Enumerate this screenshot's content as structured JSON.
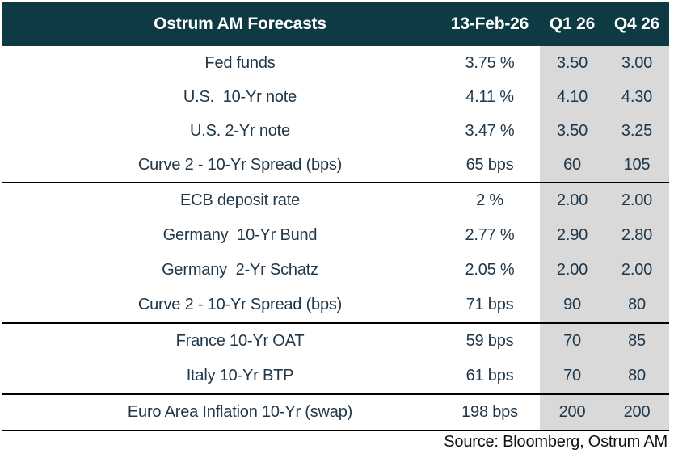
{
  "table": {
    "title": "Ostrum AM Forecasts",
    "columns": [
      "13-Feb-26",
      "Q1 26",
      "Q4 26"
    ],
    "sections": [
      {
        "rows": [
          {
            "label": "Fed funds",
            "current": "3.75 %",
            "q1": "3.50",
            "q4": "3.00"
          },
          {
            "label": "U.S.  10-Yr note",
            "current": "4.11 %",
            "q1": "4.10",
            "q4": "4.30"
          },
          {
            "label": "U.S. 2-Yr note",
            "current": "3.47 %",
            "q1": "3.50",
            "q4": "3.25"
          },
          {
            "label": "Curve 2 - 10-Yr Spread (bps)",
            "current": "65 bps",
            "q1": "60",
            "q4": "105"
          }
        ]
      },
      {
        "rows": [
          {
            "label": "ECB deposit rate",
            "current": "2 %",
            "q1": "2.00",
            "q4": "2.00"
          },
          {
            "label": "Germany  10-Yr Bund",
            "current": "2.77 %",
            "q1": "2.90",
            "q4": "2.80"
          },
          {
            "label": "Germany  2-Yr Schatz",
            "current": "2.05 %",
            "q1": "2.00",
            "q4": "2.00"
          },
          {
            "label": "Curve 2 - 10-Yr Spread (bps)",
            "current": "71 bps",
            "q1": "90",
            "q4": "80"
          }
        ]
      },
      {
        "rows": [
          {
            "label": "France 10-Yr OAT",
            "current": "59 bps",
            "q1": "70",
            "q4": "85"
          },
          {
            "label": "Italy 10-Yr BTP",
            "current": "61 bps",
            "q1": "70",
            "q4": "80"
          }
        ]
      },
      {
        "rows": [
          {
            "label": "Euro Area Inflation 10-Yr (swap)",
            "current": "198 bps",
            "q1": "200",
            "q4": "200"
          }
        ]
      }
    ],
    "source": "Source: Bloomberg, Ostrum AM"
  },
  "colors": {
    "header_bg": "#0d3a43",
    "header_text": "#ffffff",
    "body_text": "#21384a",
    "forecast_column_bg": "#d9d9d9",
    "section_divider": "#000000"
  }
}
